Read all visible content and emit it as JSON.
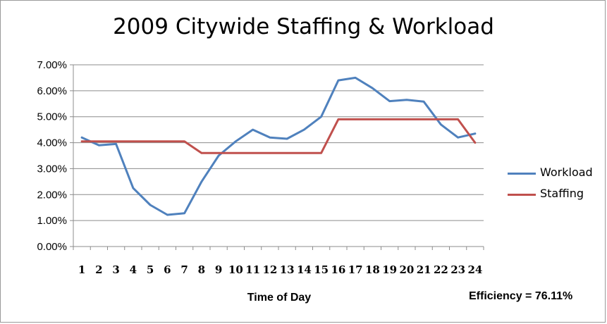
{
  "chart_data": {
    "type": "line",
    "title": "2009 Citywide Staffing & Workload",
    "xlabel": "Time of Day",
    "ylabel": "",
    "x": [
      1,
      2,
      3,
      4,
      5,
      6,
      7,
      8,
      9,
      10,
      11,
      12,
      13,
      14,
      15,
      16,
      17,
      18,
      19,
      20,
      21,
      22,
      23,
      24
    ],
    "ylim": [
      0,
      7
    ],
    "yticks": [
      "0.00%",
      "1.00%",
      "2.00%",
      "3.00%",
      "4.00%",
      "5.00%",
      "6.00%",
      "7.00%"
    ],
    "grid": true,
    "legend_position": "right",
    "series": [
      {
        "name": "Workload",
        "color": "#4f81bd",
        "values": [
          4.2,
          3.9,
          3.95,
          2.25,
          1.6,
          1.22,
          1.28,
          2.5,
          3.5,
          4.05,
          4.5,
          4.2,
          4.15,
          4.5,
          5.0,
          6.4,
          6.5,
          6.1,
          5.6,
          5.65,
          5.58,
          4.7,
          4.2,
          4.35
        ]
      },
      {
        "name": "Staffing",
        "color": "#c0504d",
        "values": [
          4.05,
          4.05,
          4.05,
          4.05,
          4.05,
          4.05,
          4.05,
          3.6,
          3.6,
          3.6,
          3.6,
          3.6,
          3.6,
          3.6,
          3.6,
          4.9,
          4.9,
          4.9,
          4.9,
          4.9,
          4.9,
          4.9,
          4.9,
          4.0
        ]
      }
    ],
    "annotation": "Efficiency = 76.11%"
  }
}
